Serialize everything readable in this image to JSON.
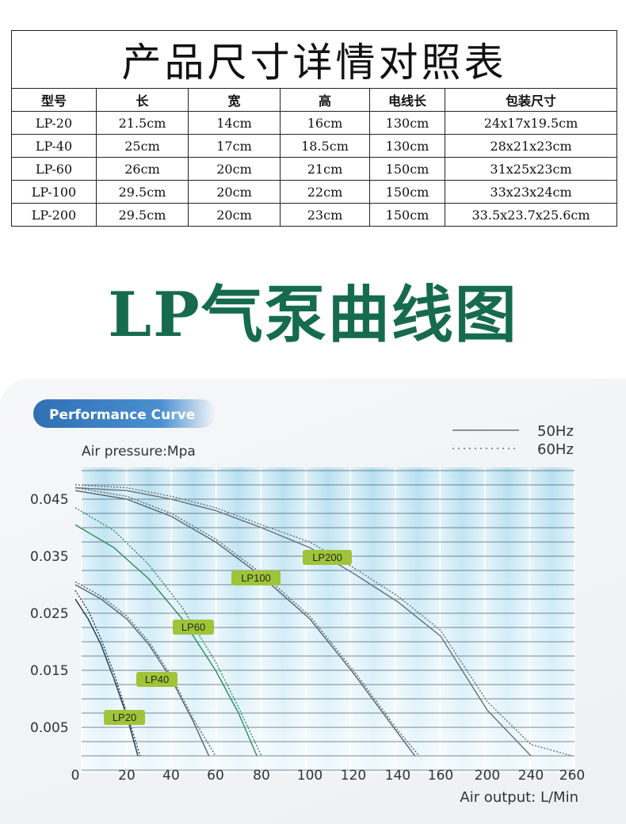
{
  "table": {
    "title": "产品尺寸详情对照表",
    "headers": [
      "型号",
      "长",
      "宽",
      "高",
      "电线长",
      "包装尺寸"
    ],
    "rows": [
      [
        "LP-20",
        "21.5cm",
        "14cm",
        "16cm",
        "130cm",
        "24x17x19.5cm"
      ],
      [
        "LP-40",
        "25cm",
        "17cm",
        "18.5cm",
        "130cm",
        "28x21x23cm"
      ],
      [
        "LP-60",
        "26cm",
        "20cm",
        "21cm",
        "150cm",
        "31x25x23cm"
      ],
      [
        "LP-100",
        "29.5cm",
        "20cm",
        "22cm",
        "150cm",
        "33x23x24cm"
      ],
      [
        "LP-200",
        "29.5cm",
        "20cm",
        "23cm",
        "150cm",
        "33.5x23.7x25.6cm"
      ]
    ]
  },
  "section_heading": "LP气泵曲线图",
  "colors": {
    "heading_green": "#166b4f",
    "badge_green": "#9fc43a",
    "badge_blue": "#3a7fc1"
  },
  "chart_data": {
    "type": "line",
    "title": "Performance Curve",
    "ylabel": "Air pressure:Mpa",
    "xlabel": "Air output: L/Min",
    "x_ticks": [
      "0",
      "20",
      "40",
      "60",
      "80",
      "100",
      "120",
      "140",
      "160",
      "200",
      "240",
      "260"
    ],
    "y_ticks": [
      "0.045",
      "0.035",
      "0.025",
      "0.015",
      "0.005"
    ],
    "ylim": [
      0,
      0.05
    ],
    "legend": {
      "position": "top-right",
      "entries": [
        "50Hz",
        "60Hz"
      ]
    },
    "grid": true,
    "series": [
      {
        "name": "LP20",
        "hz": "50Hz",
        "x": [
          0,
          5,
          10,
          15,
          20,
          25
        ],
        "y": [
          0.0275,
          0.024,
          0.0195,
          0.0135,
          0.007,
          0.0
        ]
      },
      {
        "name": "LP20",
        "hz": "60Hz",
        "x": [
          0,
          5,
          10,
          15,
          20,
          26
        ],
        "y": [
          0.029,
          0.0255,
          0.0205,
          0.0145,
          0.0075,
          0.0
        ]
      },
      {
        "name": "LP40",
        "hz": "50Hz",
        "x": [
          0,
          10,
          20,
          30,
          40,
          50,
          57
        ],
        "y": [
          0.03,
          0.0275,
          0.024,
          0.0195,
          0.0135,
          0.006,
          0.0
        ]
      },
      {
        "name": "LP40",
        "hz": "60Hz",
        "x": [
          0,
          10,
          20,
          30,
          40,
          50,
          60
        ],
        "y": [
          0.0305,
          0.028,
          0.0245,
          0.02,
          0.014,
          0.0065,
          0.0
        ]
      },
      {
        "name": "LP60",
        "hz": "50Hz",
        "x": [
          0,
          15,
          30,
          45,
          60,
          70,
          78
        ],
        "y": [
          0.0405,
          0.0365,
          0.031,
          0.024,
          0.015,
          0.0075,
          0.0
        ]
      },
      {
        "name": "LP60",
        "hz": "60Hz",
        "x": [
          0,
          15,
          30,
          45,
          60,
          70,
          80
        ],
        "y": [
          0.0435,
          0.0395,
          0.0335,
          0.026,
          0.0165,
          0.0085,
          0.0
        ]
      },
      {
        "name": "LP100",
        "hz": "50Hz",
        "x": [
          0,
          20,
          40,
          60,
          80,
          100,
          120,
          140,
          148
        ],
        "y": [
          0.0465,
          0.045,
          0.042,
          0.0375,
          0.0315,
          0.024,
          0.0145,
          0.004,
          0.0
        ]
      },
      {
        "name": "LP100",
        "hz": "60Hz",
        "x": [
          0,
          20,
          40,
          60,
          80,
          100,
          120,
          140,
          150
        ],
        "y": [
          0.047,
          0.0455,
          0.0425,
          0.038,
          0.032,
          0.0245,
          0.015,
          0.0045,
          0.0
        ]
      },
      {
        "name": "LP200",
        "hz": "50Hz",
        "x": [
          0,
          20,
          40,
          60,
          80,
          100,
          120,
          140,
          160,
          200,
          240
        ],
        "y": [
          0.047,
          0.0465,
          0.045,
          0.043,
          0.04,
          0.0365,
          0.032,
          0.027,
          0.021,
          0.008,
          0.0
        ]
      },
      {
        "name": "LP200",
        "hz": "60Hz",
        "x": [
          0,
          20,
          40,
          60,
          80,
          100,
          120,
          140,
          160,
          200,
          240,
          260
        ],
        "y": [
          0.0475,
          0.047,
          0.0455,
          0.0435,
          0.0405,
          0.0375,
          0.033,
          0.028,
          0.022,
          0.0095,
          0.002,
          0.0
        ]
      }
    ],
    "labels": [
      {
        "text": "LP20",
        "series": "LP20"
      },
      {
        "text": "LP40",
        "series": "LP40"
      },
      {
        "text": "LP60",
        "series": "LP60"
      },
      {
        "text": "LP100",
        "series": "LP100"
      },
      {
        "text": "LP200",
        "series": "LP200"
      }
    ]
  }
}
